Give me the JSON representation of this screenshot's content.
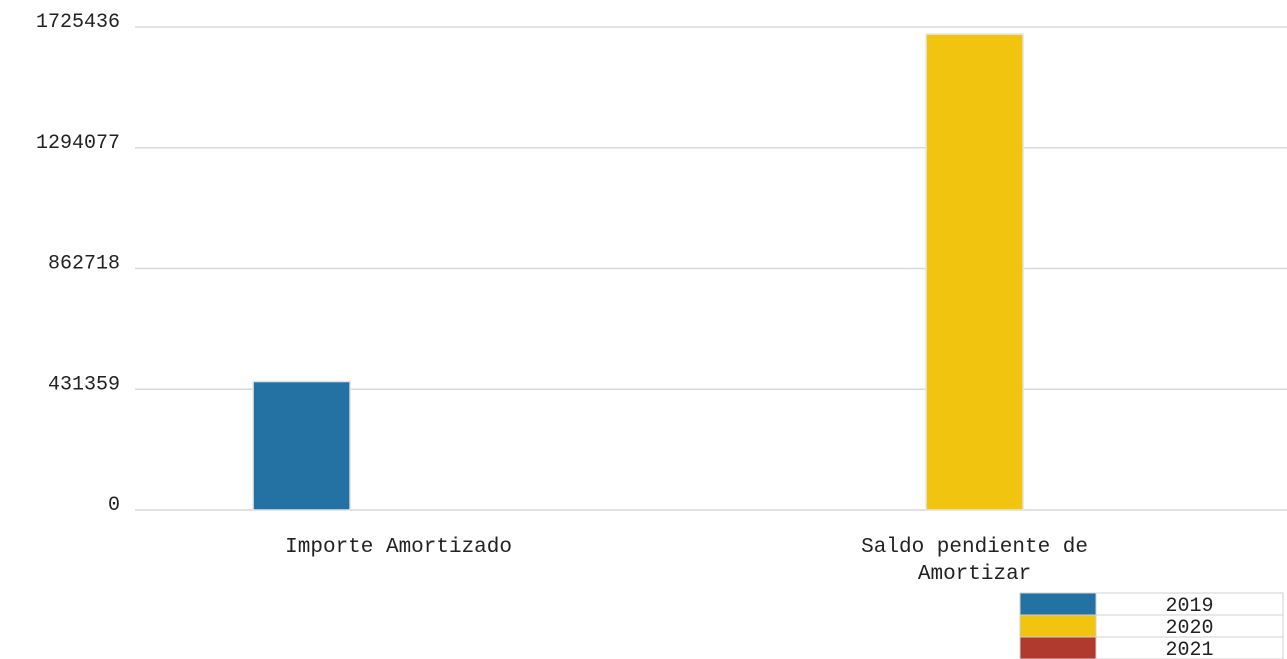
{
  "chart_data": {
    "type": "bar",
    "title": "",
    "xlabel": "",
    "ylabel": "",
    "categories": [
      [
        "Importe Amortizado"
      ],
      [
        "Saldo pendiente de",
        "Amortizar"
      ]
    ],
    "y_ticks": [
      "0",
      "431359",
      "862718",
      "1294077",
      "1725436"
    ],
    "ylim": [
      0,
      1725436
    ],
    "series": [
      {
        "name": "2019",
        "color": "#2471a3",
        "values": [
          459000,
          0
        ]
      },
      {
        "name": "2020",
        "color": "#f1c40f",
        "values": [
          0,
          1700000
        ]
      },
      {
        "name": "2021",
        "color": "#b03a2e",
        "values": [
          0,
          0
        ]
      }
    ],
    "grid": true,
    "legend_position": "bottom-right"
  }
}
